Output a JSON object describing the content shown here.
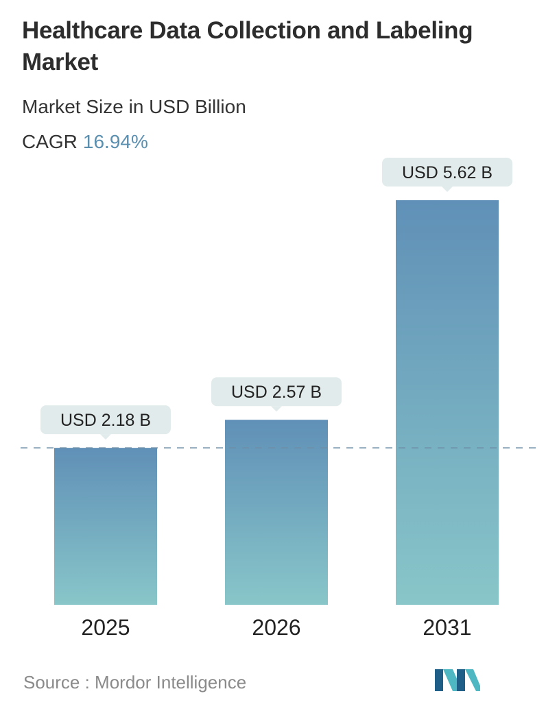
{
  "header": {
    "title": "Healthcare Data Collection and Labeling Market",
    "subtitle": "Market Size in USD Billion",
    "cagr_label": "CAGR",
    "cagr_value": "16.94%"
  },
  "footer": {
    "source": "Source :  Mordor Intelligence",
    "logo_icon": "mordor-intelligence-logo"
  },
  "colors": {
    "bar_top": "#6090b7",
    "bar_bottom": "#88c6c9",
    "label_bg": "#e2ebeb",
    "accent_text": "#5a8fb0",
    "dashed_line": "#6d8fa8",
    "logo_dark": "#1f5e86",
    "logo_light": "#4fb7c1"
  },
  "chart_data": {
    "type": "bar",
    "categories": [
      "2025",
      "2026",
      "2031"
    ],
    "values": [
      2.18,
      2.57,
      5.62
    ],
    "data_labels": [
      "USD 2.18 B",
      "USD 2.57 B",
      "USD 5.62 B"
    ],
    "unit": "USD Billion",
    "reference_line": 2.18,
    "grid": false,
    "ylim": [
      0,
      5.62
    ]
  }
}
